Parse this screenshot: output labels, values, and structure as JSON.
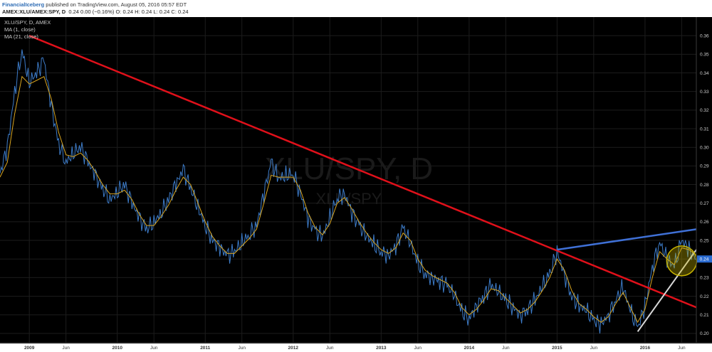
{
  "header": {
    "author": "FinancialIceberg",
    "published": " published on TradingView.com, August 05, 2016 05:57 EDT",
    "symbol": "AMEX:XLU/AMEX:SPY, D",
    "ohlc": "0.24 0.00 (−0.16%) O: 0.24 H: 0.24 L: 0.24 C: 0.24"
  },
  "legend": {
    "title": "XLU/SPY, D, AMEX",
    "ma1": "MA (1, close)",
    "ma2": "MA (21, close)"
  },
  "watermark": {
    "main": "XLU/SPY, D",
    "sub": "XLU/SPY"
  },
  "price_tag": "0.24",
  "colors": {
    "background": "#000000",
    "price_line": "#3d7cc9",
    "ma21_line": "#d9a520",
    "downtrend_line": "#e0101a",
    "resistance_line": "#3f70d6",
    "support_line": "#d8d8d8",
    "highlight_circle": "#c8b400",
    "price_tag": "#2a6bd1"
  },
  "chart_data": {
    "type": "line",
    "title": "XLU/SPY, D, AMEX",
    "x_range": [
      "2008-09",
      "2016-08"
    ],
    "ylim": [
      0.195,
      0.37
    ],
    "y_ticks": [
      0.2,
      0.21,
      0.22,
      0.23,
      0.24,
      0.25,
      0.26,
      0.27,
      0.28,
      0.29,
      0.3,
      0.31,
      0.32,
      0.33,
      0.34,
      0.35,
      0.36
    ],
    "x_ticks": [
      {
        "label": "2009",
        "date": "2009-01"
      },
      {
        "label": "Jun",
        "date": "2009-06"
      },
      {
        "label": "2010",
        "date": "2010-01"
      },
      {
        "label": "Jun",
        "date": "2010-06"
      },
      {
        "label": "2011",
        "date": "2011-01"
      },
      {
        "label": "Jun",
        "date": "2011-06"
      },
      {
        "label": "2012",
        "date": "2012-01"
      },
      {
        "label": "Jun",
        "date": "2012-06"
      },
      {
        "label": "2013",
        "date": "2013-01"
      },
      {
        "label": "Jun",
        "date": "2013-06"
      },
      {
        "label": "2014",
        "date": "2014-01"
      },
      {
        "label": "Jun",
        "date": "2014-06"
      },
      {
        "label": "2015",
        "date": "2015-01"
      },
      {
        "label": "Jun",
        "date": "2015-06"
      },
      {
        "label": "2016",
        "date": "2016-01"
      },
      {
        "label": "Jun",
        "date": "2016-06"
      }
    ],
    "grid": true,
    "series": [
      {
        "name": "MA (1, close)",
        "points": [
          [
            "2008-09",
            0.286
          ],
          [
            "2008-10",
            0.3
          ],
          [
            "2008-11",
            0.33
          ],
          [
            "2008-12",
            0.352
          ],
          [
            "2009-01",
            0.335
          ],
          [
            "2009-02",
            0.34
          ],
          [
            "2009-03",
            0.347
          ],
          [
            "2009-04",
            0.322
          ],
          [
            "2009-05",
            0.302
          ],
          [
            "2009-06",
            0.292
          ],
          [
            "2009-07",
            0.297
          ],
          [
            "2009-08",
            0.3
          ],
          [
            "2009-09",
            0.292
          ],
          [
            "2009-10",
            0.285
          ],
          [
            "2009-11",
            0.278
          ],
          [
            "2009-12",
            0.272
          ],
          [
            "2010-01",
            0.276
          ],
          [
            "2010-02",
            0.28
          ],
          [
            "2010-03",
            0.27
          ],
          [
            "2010-04",
            0.262
          ],
          [
            "2010-05",
            0.256
          ],
          [
            "2010-06",
            0.26
          ],
          [
            "2010-07",
            0.265
          ],
          [
            "2010-08",
            0.272
          ],
          [
            "2010-09",
            0.28
          ],
          [
            "2010-10",
            0.288
          ],
          [
            "2010-11",
            0.278
          ],
          [
            "2010-12",
            0.268
          ],
          [
            "2011-01",
            0.258
          ],
          [
            "2011-02",
            0.25
          ],
          [
            "2011-03",
            0.246
          ],
          [
            "2011-04",
            0.242
          ],
          [
            "2011-05",
            0.244
          ],
          [
            "2011-06",
            0.249
          ],
          [
            "2011-07",
            0.253
          ],
          [
            "2011-08",
            0.258
          ],
          [
            "2011-09",
            0.275
          ],
          [
            "2011-10",
            0.292
          ],
          [
            "2011-11",
            0.283
          ],
          [
            "2011-12",
            0.285
          ],
          [
            "2012-01",
            0.286
          ],
          [
            "2012-02",
            0.275
          ],
          [
            "2012-03",
            0.262
          ],
          [
            "2012-04",
            0.255
          ],
          [
            "2012-05",
            0.252
          ],
          [
            "2012-06",
            0.262
          ],
          [
            "2012-07",
            0.273
          ],
          [
            "2012-08",
            0.275
          ],
          [
            "2012-09",
            0.265
          ],
          [
            "2012-10",
            0.258
          ],
          [
            "2012-11",
            0.252
          ],
          [
            "2012-12",
            0.248
          ],
          [
            "2013-01",
            0.244
          ],
          [
            "2013-02",
            0.242
          ],
          [
            "2013-03",
            0.247
          ],
          [
            "2013-04",
            0.257
          ],
          [
            "2013-05",
            0.248
          ],
          [
            "2013-06",
            0.238
          ],
          [
            "2013-07",
            0.232
          ],
          [
            "2013-08",
            0.23
          ],
          [
            "2013-09",
            0.228
          ],
          [
            "2013-10",
            0.226
          ],
          [
            "2013-11",
            0.22
          ],
          [
            "2013-12",
            0.212
          ],
          [
            "2014-01",
            0.208
          ],
          [
            "2014-02",
            0.215
          ],
          [
            "2014-03",
            0.22
          ],
          [
            "2014-04",
            0.226
          ],
          [
            "2014-05",
            0.222
          ],
          [
            "2014-06",
            0.218
          ],
          [
            "2014-07",
            0.214
          ],
          [
            "2014-08",
            0.21
          ],
          [
            "2014-09",
            0.213
          ],
          [
            "2014-10",
            0.218
          ],
          [
            "2014-11",
            0.225
          ],
          [
            "2014-12",
            0.232
          ],
          [
            "2015-01",
            0.244
          ],
          [
            "2015-02",
            0.232
          ],
          [
            "2015-03",
            0.22
          ],
          [
            "2015-04",
            0.215
          ],
          [
            "2015-05",
            0.212
          ],
          [
            "2015-06",
            0.207
          ],
          [
            "2015-07",
            0.205
          ],
          [
            "2015-08",
            0.21
          ],
          [
            "2015-09",
            0.218
          ],
          [
            "2015-10",
            0.225
          ],
          [
            "2015-11",
            0.212
          ],
          [
            "2015-12",
            0.203
          ],
          [
            "2016-01",
            0.215
          ],
          [
            "2016-02",
            0.236
          ],
          [
            "2016-03",
            0.249
          ],
          [
            "2016-04",
            0.24
          ],
          [
            "2016-05",
            0.236
          ],
          [
            "2016-06",
            0.25
          ],
          [
            "2016-07",
            0.245
          ],
          [
            "2016-08",
            0.24
          ]
        ]
      },
      {
        "name": "MA (21, close)",
        "points": [
          [
            "2008-09",
            0.284
          ],
          [
            "2008-10",
            0.292
          ],
          [
            "2008-11",
            0.318
          ],
          [
            "2008-12",
            0.338
          ],
          [
            "2009-01",
            0.334
          ],
          [
            "2009-02",
            0.336
          ],
          [
            "2009-03",
            0.338
          ],
          [
            "2009-04",
            0.326
          ],
          [
            "2009-05",
            0.308
          ],
          [
            "2009-06",
            0.296
          ],
          [
            "2009-07",
            0.295
          ],
          [
            "2009-08",
            0.297
          ],
          [
            "2009-09",
            0.293
          ],
          [
            "2009-10",
            0.287
          ],
          [
            "2009-11",
            0.28
          ],
          [
            "2009-12",
            0.275
          ],
          [
            "2010-01",
            0.275
          ],
          [
            "2010-02",
            0.277
          ],
          [
            "2010-03",
            0.272
          ],
          [
            "2010-04",
            0.264
          ],
          [
            "2010-05",
            0.258
          ],
          [
            "2010-06",
            0.258
          ],
          [
            "2010-07",
            0.263
          ],
          [
            "2010-08",
            0.269
          ],
          [
            "2010-09",
            0.277
          ],
          [
            "2010-10",
            0.284
          ],
          [
            "2010-11",
            0.28
          ],
          [
            "2010-12",
            0.27
          ],
          [
            "2011-01",
            0.26
          ],
          [
            "2011-02",
            0.252
          ],
          [
            "2011-03",
            0.247
          ],
          [
            "2011-04",
            0.243
          ],
          [
            "2011-05",
            0.243
          ],
          [
            "2011-06",
            0.247
          ],
          [
            "2011-07",
            0.251
          ],
          [
            "2011-08",
            0.256
          ],
          [
            "2011-09",
            0.27
          ],
          [
            "2011-10",
            0.285
          ],
          [
            "2011-11",
            0.284
          ],
          [
            "2011-12",
            0.284
          ],
          [
            "2012-01",
            0.284
          ],
          [
            "2012-02",
            0.277
          ],
          [
            "2012-03",
            0.265
          ],
          [
            "2012-04",
            0.257
          ],
          [
            "2012-05",
            0.253
          ],
          [
            "2012-06",
            0.259
          ],
          [
            "2012-07",
            0.27
          ],
          [
            "2012-08",
            0.273
          ],
          [
            "2012-09",
            0.267
          ],
          [
            "2012-10",
            0.26
          ],
          [
            "2012-11",
            0.254
          ],
          [
            "2012-12",
            0.249
          ],
          [
            "2013-01",
            0.245
          ],
          [
            "2013-02",
            0.243
          ],
          [
            "2013-03",
            0.246
          ],
          [
            "2013-04",
            0.254
          ],
          [
            "2013-05",
            0.25
          ],
          [
            "2013-06",
            0.24
          ],
          [
            "2013-07",
            0.234
          ],
          [
            "2013-08",
            0.231
          ],
          [
            "2013-09",
            0.229
          ],
          [
            "2013-10",
            0.227
          ],
          [
            "2013-11",
            0.222
          ],
          [
            "2013-12",
            0.214
          ],
          [
            "2014-01",
            0.21
          ],
          [
            "2014-02",
            0.213
          ],
          [
            "2014-03",
            0.218
          ],
          [
            "2014-04",
            0.224
          ],
          [
            "2014-05",
            0.223
          ],
          [
            "2014-06",
            0.219
          ],
          [
            "2014-07",
            0.215
          ],
          [
            "2014-08",
            0.211
          ],
          [
            "2014-09",
            0.213
          ],
          [
            "2014-10",
            0.217
          ],
          [
            "2014-11",
            0.223
          ],
          [
            "2014-12",
            0.23
          ],
          [
            "2015-01",
            0.24
          ],
          [
            "2015-02",
            0.234
          ],
          [
            "2015-03",
            0.223
          ],
          [
            "2015-04",
            0.216
          ],
          [
            "2015-05",
            0.213
          ],
          [
            "2015-06",
            0.209
          ],
          [
            "2015-07",
            0.206
          ],
          [
            "2015-08",
            0.209
          ],
          [
            "2015-09",
            0.216
          ],
          [
            "2015-10",
            0.222
          ],
          [
            "2015-11",
            0.214
          ],
          [
            "2015-12",
            0.206
          ],
          [
            "2016-01",
            0.213
          ],
          [
            "2016-02",
            0.23
          ],
          [
            "2016-03",
            0.244
          ],
          [
            "2016-04",
            0.24
          ],
          [
            "2016-05",
            0.237
          ],
          [
            "2016-06",
            0.246
          ],
          [
            "2016-07",
            0.245
          ],
          [
            "2016-08",
            0.242
          ]
        ]
      }
    ],
    "trendlines": [
      {
        "name": "downtrend",
        "from": [
          "2009-01",
          0.36
        ],
        "to": [
          "2016-08",
          0.214
        ]
      },
      {
        "name": "resistance",
        "from": [
          "2015-01",
          0.245
        ],
        "to": [
          "2016-08",
          0.256
        ]
      },
      {
        "name": "support",
        "from": [
          "2015-12",
          0.201
        ],
        "to": [
          "2016-08",
          0.245
        ]
      }
    ],
    "annotations": [
      {
        "type": "circle",
        "center": [
          "2016-06",
          0.239
        ],
        "note": "highlight"
      }
    ]
  }
}
